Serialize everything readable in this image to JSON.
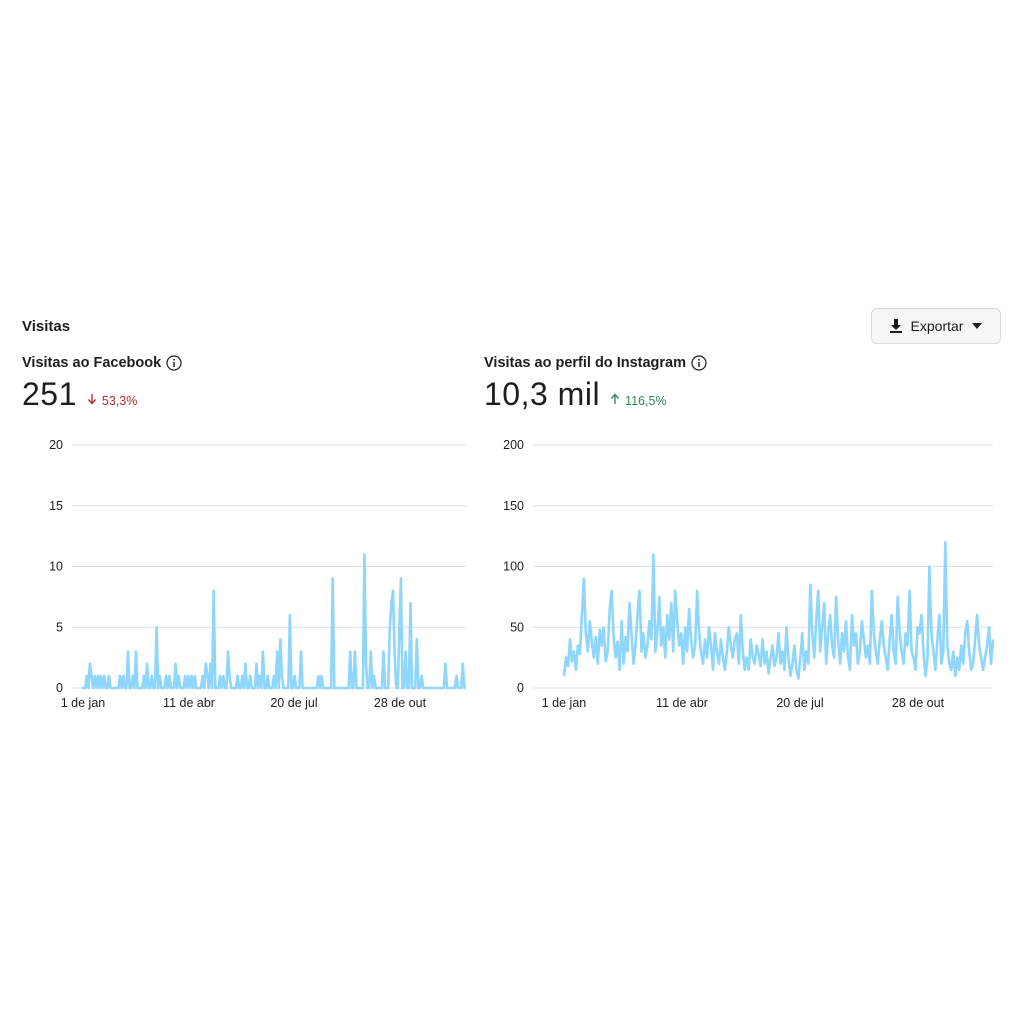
{
  "section": {
    "title": "Visitas"
  },
  "toolbar": {
    "export_label": "Exportar"
  },
  "colors": {
    "line": "#8ed6fb",
    "grid": "#dcdfe3",
    "down": "#b0302f",
    "up": "#2e8b57"
  },
  "panels": [
    {
      "title": "Visitas ao Facebook",
      "value": "251",
      "change": "53,3%",
      "change_direction": "down"
    },
    {
      "title": "Visitas ao perfil do Instagram",
      "value": "10,3 mil",
      "change": "116,5%",
      "change_direction": "up"
    }
  ],
  "chart_data": [
    {
      "type": "line",
      "series": [
        {
          "values": [
            0,
            0,
            0,
            1,
            0,
            2,
            1,
            0,
            1,
            0,
            1,
            0,
            1,
            0,
            1,
            0,
            0,
            1,
            0,
            0,
            0,
            0,
            0,
            0,
            1,
            0,
            1,
            0,
            0,
            3,
            0,
            0,
            1,
            0,
            3,
            0,
            0,
            0,
            0,
            1,
            0,
            2,
            0,
            0,
            1,
            0,
            0,
            5,
            0,
            1,
            0,
            0,
            0,
            1,
            0,
            1,
            0,
            0,
            0,
            2,
            0,
            1,
            0,
            0,
            0,
            1,
            0,
            1,
            0,
            1,
            0,
            1,
            0,
            0,
            0,
            0,
            1,
            0,
            2,
            1,
            0,
            2,
            0,
            8,
            0,
            0,
            0,
            1,
            0,
            1,
            0,
            0,
            3,
            1,
            0,
            0,
            0,
            0,
            1,
            0,
            0,
            1,
            0,
            2,
            0,
            0,
            1,
            0,
            0,
            0,
            2,
            0,
            1,
            0,
            3,
            0,
            0,
            1,
            0,
            0,
            0,
            1,
            0,
            3,
            0,
            4,
            1,
            0,
            0,
            0,
            0,
            6,
            0,
            0,
            1,
            0,
            0,
            0,
            3,
            0,
            0,
            0,
            0,
            0,
            0,
            0,
            0,
            0,
            0,
            1,
            0,
            1,
            0,
            0,
            0,
            0,
            0,
            0,
            9,
            0,
            0,
            0,
            0,
            0,
            0,
            0,
            0,
            0,
            0,
            3,
            0,
            0,
            3,
            0,
            0,
            0,
            0,
            0,
            11,
            2,
            0,
            0,
            3,
            0,
            1,
            0,
            0,
            0,
            0,
            0,
            3,
            0,
            0,
            0,
            5,
            7,
            8,
            3,
            0,
            0,
            5,
            9,
            0,
            0,
            3,
            0,
            0,
            7,
            0,
            0,
            0,
            4,
            0,
            0,
            1,
            0,
            0,
            0,
            0,
            0,
            0,
            0,
            0,
            0,
            0,
            0,
            0,
            0,
            0,
            2,
            0,
            0,
            0,
            0,
            0,
            0,
            1,
            0,
            0,
            0,
            2,
            0,
            0
          ]
        }
      ],
      "x_ticks": [
        "1 de jan",
        "11 de abr",
        "20 de jul",
        "28 de out"
      ],
      "y_ticks": [
        0,
        5,
        10,
        15,
        20
      ],
      "ylim": [
        0,
        20
      ],
      "grid": true
    },
    {
      "type": "line",
      "series": [
        {
          "values": [
            10,
            25,
            18,
            40,
            22,
            30,
            15,
            35,
            28,
            60,
            90,
            45,
            30,
            55,
            38,
            25,
            42,
            20,
            48,
            35,
            50,
            22,
            30,
            65,
            80,
            40,
            25,
            38,
            15,
            55,
            20,
            42,
            30,
            70,
            45,
            20,
            35,
            60,
            80,
            30,
            45,
            25,
            35,
            55,
            40,
            110,
            30,
            45,
            75,
            35,
            50,
            25,
            60,
            40,
            70,
            30,
            80,
            55,
            35,
            45,
            20,
            50,
            30,
            65,
            40,
            25,
            35,
            80,
            45,
            30,
            20,
            40,
            25,
            50,
            35,
            15,
            45,
            30,
            20,
            40,
            25,
            15,
            30,
            50,
            35,
            25,
            40,
            45,
            20,
            60,
            30,
            15,
            25,
            15,
            40,
            25,
            20,
            35,
            28,
            18,
            40,
            20,
            30,
            12,
            25,
            35,
            18,
            25,
            45,
            20,
            30,
            15,
            50,
            25,
            10,
            20,
            35,
            15,
            8,
            25,
            45,
            15,
            30,
            20,
            85,
            45,
            25,
            55,
            80,
            30,
            50,
            70,
            20,
            45,
            60,
            35,
            25,
            75,
            40,
            20,
            45,
            30,
            55,
            25,
            15,
            60,
            35,
            45,
            20,
            30,
            55,
            40,
            25,
            35,
            20,
            80,
            45,
            30,
            20,
            40,
            55,
            35,
            25,
            15,
            40,
            60,
            30,
            20,
            75,
            45,
            30,
            20,
            45,
            35,
            80,
            30,
            25,
            15,
            50,
            45,
            60,
            30,
            10,
            25,
            100,
            45,
            30,
            15,
            40,
            60,
            20,
            30,
            120,
            35,
            20,
            15,
            30,
            10,
            25,
            15,
            35,
            20,
            45,
            55,
            30,
            15,
            20,
            40,
            60,
            35,
            25,
            15,
            25,
            35,
            50,
            20,
            40
          ]
        }
      ],
      "x_ticks": [
        "1 de jan",
        "11 de abr",
        "20 de jul",
        "28 de out"
      ],
      "y_ticks": [
        0,
        50,
        100,
        150,
        200
      ],
      "ylim": [
        0,
        200
      ],
      "grid": true
    }
  ]
}
